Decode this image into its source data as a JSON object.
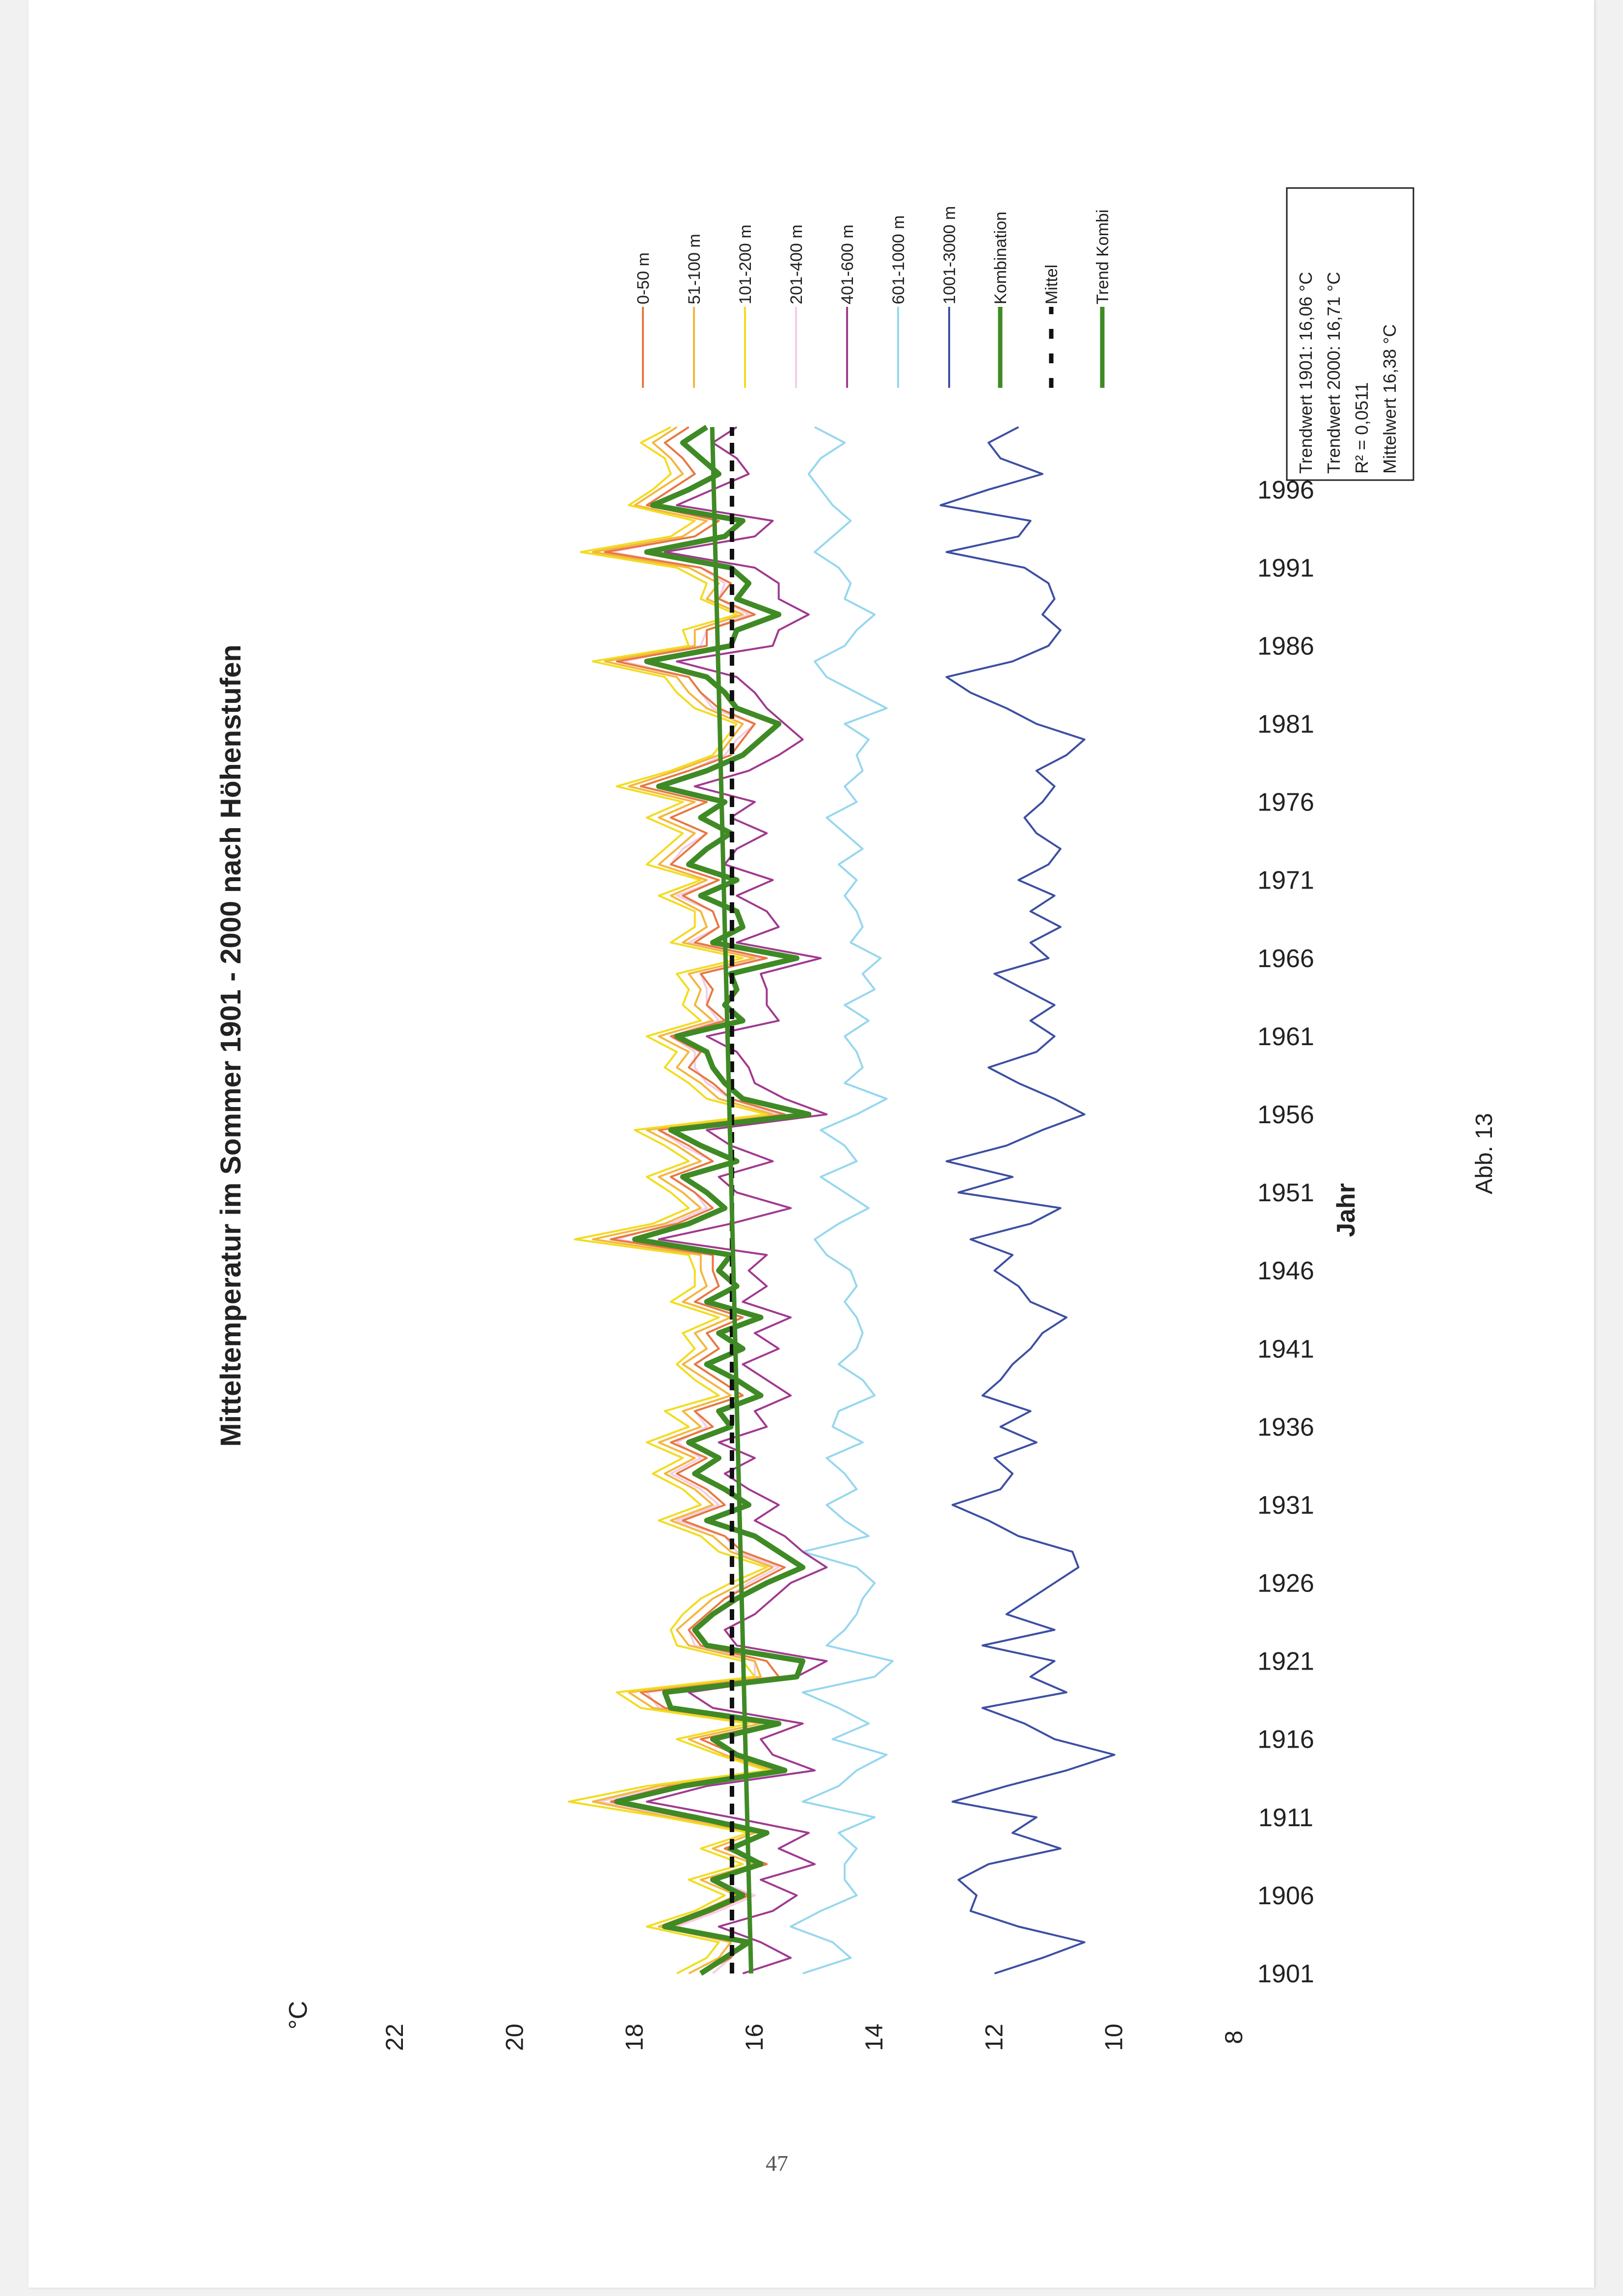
{
  "page": {
    "number": "47",
    "figure_caption": "Abb. 13"
  },
  "legend_labels": {
    "trend_1901": "Trendwert 1901: 16,06 °C",
    "trend_2000": "Trendwert 2000: 16,71 °C",
    "r2": "R² = 0,0511",
    "mean": "Mittelwert 16,38 °C"
  },
  "chart_data": {
    "type": "line",
    "orientation": "rotated-90-ccw",
    "title": "Mitteltemperatur im Sommer 1901 - 2000 nach Höhenstufen",
    "xlabel": "Jahr",
    "ylabel": "°C",
    "ylim": [
      8,
      22
    ],
    "yticks": [
      "8",
      "10",
      "12",
      "14",
      "16",
      "18",
      "20",
      "22"
    ],
    "xlim": [
      1901,
      2000
    ],
    "xticks": [
      "1901",
      "1906",
      "1911",
      "1916",
      "1921",
      "1926",
      "1931",
      "1936",
      "1941",
      "1946",
      "1951",
      "1956",
      "1961",
      "1966",
      "1971",
      "1976",
      "1981",
      "1986",
      "1991",
      "1996"
    ],
    "grid": false,
    "legend_position": "right",
    "colors": {
      "0-50 m": "#e8773f",
      "51-100 m": "#f4b63c",
      "101-200 m": "#f2dc1f",
      "201-400 m": "#f3cde8",
      "401-600 m": "#a0398f",
      "601-1000 m": "#96d7ee",
      "1001-3000 m": "#3c4fa3",
      "Kombination": "#3f8a25",
      "Mittel": "#111111",
      "Trend Kombi": "#3f8a25"
    },
    "series": [
      {
        "name": "Kombination",
        "values": [
          16.9,
          16.5,
          16.1,
          17.5,
          16.8,
          16.2,
          16.7,
          15.9,
          16.4,
          15.8,
          17.0,
          18.3,
          17.2,
          15.5,
          16.3,
          16.7,
          15.6,
          17.4,
          17.5,
          15.3,
          15.2,
          16.8,
          17.0,
          16.7,
          16.3,
          15.8,
          15.2,
          15.6,
          16.0,
          16.8,
          16.1,
          16.5,
          17.0,
          16.6,
          17.1,
          16.4,
          16.6,
          15.9,
          16.3,
          16.8,
          16.2,
          16.6,
          15.9,
          16.8,
          16.3,
          16.6,
          16.4,
          18.0,
          17.1,
          16.5,
          16.8,
          17.2,
          16.3,
          16.9,
          17.4,
          15.1,
          16.2,
          16.5,
          16.7,
          16.8,
          17.3,
          16.2,
          16.5,
          16.3,
          16.4,
          15.3,
          16.7,
          16.2,
          16.3,
          16.9,
          16.3,
          17.1,
          16.8,
          16.4,
          16.9,
          16.5,
          17.6,
          16.8,
          16.2,
          15.9,
          15.6,
          16.3,
          16.5,
          16.8,
          17.8,
          16.4,
          16.3,
          15.6,
          16.3,
          16.1,
          16.4,
          17.8,
          16.5,
          16.2,
          17.7,
          17.1,
          16.6,
          16.9,
          17.2,
          16.8
        ]
      },
      {
        "name": "1001-3000 m",
        "values": [
          12.0,
          11.2,
          10.5,
          11.6,
          12.4,
          12.3,
          12.6,
          12.1,
          10.9,
          11.7,
          11.3,
          12.7,
          11.8,
          10.8,
          10.0,
          11.0,
          11.5,
          12.2,
          10.8,
          11.4,
          11.0,
          12.2,
          11.0,
          11.8,
          11.4,
          11.0,
          10.6,
          10.7,
          11.6,
          12.1,
          12.7,
          11.9,
          11.7,
          12.0,
          11.3,
          11.9,
          11.4,
          12.2,
          11.9,
          11.7,
          11.4,
          11.2,
          10.8,
          11.4,
          11.6,
          12.0,
          11.7,
          12.4,
          11.4,
          10.9,
          12.6,
          11.7,
          12.8,
          11.8,
          11.2,
          10.5,
          11.0,
          11.6,
          12.1,
          11.3,
          11.0,
          11.4,
          11.0,
          11.5,
          12.0,
          11.1,
          11.4,
          10.9,
          11.4,
          11.0,
          11.6,
          11.1,
          10.9,
          11.3,
          11.5,
          11.2,
          11.0,
          11.3,
          10.8,
          10.5,
          11.3,
          11.8,
          12.4,
          12.8,
          11.7,
          11.1,
          10.9,
          11.2,
          11.0,
          11.1,
          11.5,
          12.8,
          11.6,
          11.4,
          12.9,
          12.1,
          11.2,
          11.9,
          12.1,
          11.6
        ]
      },
      {
        "name": "601-1000 m",
        "values": [
          15.2,
          14.4,
          14.7,
          15.4,
          14.9,
          14.3,
          14.5,
          14.5,
          14.3,
          14.6,
          14.0,
          15.2,
          14.6,
          14.3,
          13.8,
          14.7,
          14.1,
          14.6,
          15.2,
          14.0,
          13.7,
          14.8,
          14.5,
          14.3,
          14.2,
          14.0,
          14.3,
          15.2,
          14.1,
          14.5,
          14.8,
          14.3,
          14.5,
          14.8,
          14.2,
          14.7,
          14.6,
          14.0,
          14.2,
          14.6,
          14.3,
          14.2,
          14.3,
          14.5,
          14.3,
          14.4,
          14.8,
          15.0,
          14.6,
          14.1,
          14.5,
          14.9,
          14.3,
          14.5,
          14.9,
          14.3,
          13.8,
          14.5,
          14.2,
          14.3,
          14.5,
          14.1,
          14.5,
          14.0,
          14.2,
          13.9,
          14.4,
          14.2,
          14.3,
          14.5,
          14.3,
          14.6,
          14.2,
          14.5,
          14.8,
          14.3,
          14.5,
          14.2,
          14.3,
          14.1,
          14.5,
          13.8,
          14.3,
          14.8,
          15.0,
          14.5,
          14.3,
          14.0,
          14.5,
          14.4,
          14.6,
          15.0,
          14.7,
          14.4,
          14.7,
          14.9,
          15.1,
          14.9,
          14.5,
          15.0
        ]
      },
      {
        "name": "401-600 m",
        "values": [
          16.2,
          15.4,
          15.9,
          16.6,
          15.7,
          15.3,
          15.9,
          15.0,
          15.6,
          15.1,
          16.4,
          17.8,
          16.8,
          15.0,
          15.7,
          15.9,
          15.2,
          16.7,
          17.1,
          15.3,
          14.8,
          16.3,
          16.5,
          16.0,
          15.7,
          15.4,
          14.8,
          15.2,
          15.5,
          16.0,
          15.6,
          16.1,
          16.5,
          16.0,
          16.6,
          15.8,
          16.0,
          15.4,
          15.8,
          16.2,
          15.6,
          16.0,
          15.4,
          16.2,
          15.8,
          16.1,
          15.8,
          17.6,
          16.4,
          15.4,
          16.3,
          16.6,
          15.7,
          16.4,
          16.8,
          14.8,
          15.5,
          16.0,
          16.1,
          16.3,
          16.8,
          15.6,
          15.8,
          15.8,
          15.9,
          14.9,
          16.3,
          15.6,
          15.8,
          16.3,
          15.7,
          16.5,
          16.3,
          15.8,
          16.4,
          16.0,
          17.0,
          16.1,
          15.6,
          15.2,
          15.5,
          15.8,
          16.0,
          16.3,
          17.3,
          15.7,
          15.6,
          15.1,
          15.6,
          15.6,
          16.0,
          17.5,
          16.0,
          15.7,
          17.3,
          16.7,
          16.1,
          16.3,
          16.7,
          16.3
        ]
      },
      {
        "name": "201-400 m",
        "values": [
          16.7,
          16.4,
          16.4,
          17.3,
          16.6,
          16.0,
          16.7,
          15.9,
          16.5,
          15.8,
          17.2,
          18.6,
          17.4,
          15.6,
          16.3,
          16.9,
          15.7,
          17.6,
          17.8,
          16.0,
          16.0,
          17.0,
          17.1,
          16.8,
          16.5,
          16.1,
          15.6,
          16.3,
          16.5,
          17.3,
          16.6,
          16.9,
          17.4,
          16.9,
          17.3,
          16.8,
          17.0,
          16.2,
          16.6,
          17.0,
          16.6,
          16.8,
          16.2,
          17.0,
          16.6,
          16.7,
          16.7,
          18.3,
          17.4,
          16.8,
          17.0,
          17.4,
          16.7,
          17.2,
          17.6,
          15.6,
          16.4,
          16.8,
          17.0,
          17.0,
          17.4,
          16.6,
          16.8,
          16.8,
          16.9,
          15.9,
          17.1,
          16.6,
          16.7,
          17.3,
          16.6,
          17.4,
          17.2,
          16.8,
          17.4,
          16.8,
          17.9,
          17.1,
          16.5,
          16.3,
          16.0,
          16.7,
          16.9,
          17.1,
          18.2,
          16.9,
          16.8,
          16.1,
          16.6,
          16.5,
          16.9,
          18.4,
          17.0,
          16.6,
          17.8,
          17.4,
          17.0,
          17.2,
          17.5,
          17.1
        ]
      },
      {
        "name": "101-200 m",
        "values": [
          17.3,
          16.8,
          16.6,
          17.8,
          17.0,
          16.5,
          17.1,
          16.2,
          16.9,
          16.1,
          17.5,
          19.1,
          17.8,
          15.8,
          16.6,
          17.3,
          16.1,
          17.9,
          18.3,
          16.0,
          16.2,
          17.3,
          17.4,
          17.2,
          16.9,
          16.4,
          15.8,
          16.6,
          16.9,
          17.6,
          16.9,
          17.2,
          17.7,
          17.2,
          17.8,
          17.1,
          17.5,
          16.6,
          17.0,
          17.3,
          17.0,
          17.2,
          16.6,
          17.4,
          17.0,
          17.0,
          17.1,
          19.0,
          17.7,
          17.1,
          17.4,
          17.8,
          17.1,
          17.5,
          18.0,
          15.8,
          16.8,
          17.1,
          17.5,
          17.3,
          17.8,
          16.9,
          17.2,
          17.1,
          17.3,
          16.2,
          17.4,
          17.0,
          17.0,
          17.6,
          16.9,
          17.8,
          17.5,
          17.2,
          17.8,
          17.2,
          18.3,
          17.4,
          16.7,
          16.5,
          16.3,
          17.0,
          17.3,
          17.5,
          18.7,
          17.1,
          17.2,
          16.3,
          16.9,
          16.8,
          17.3,
          18.9,
          17.4,
          17.0,
          18.1,
          17.7,
          17.4,
          17.5,
          17.9,
          17.4
        ]
      },
      {
        "name": "51-100 m",
        "values": [
          17.1,
          16.6,
          16.4,
          17.6,
          16.9,
          16.3,
          16.9,
          16.0,
          16.7,
          16.0,
          17.4,
          18.7,
          17.6,
          15.7,
          16.5,
          17.1,
          15.9,
          17.7,
          18.1,
          15.9,
          16.0,
          17.1,
          17.3,
          17.0,
          16.7,
          16.2,
          15.7,
          16.4,
          16.7,
          17.4,
          16.7,
          17.0,
          17.5,
          17.0,
          17.6,
          16.9,
          17.2,
          16.4,
          16.8,
          17.2,
          16.8,
          17.0,
          16.4,
          17.2,
          16.8,
          16.9,
          16.9,
          18.7,
          17.5,
          16.9,
          17.2,
          17.6,
          16.9,
          17.3,
          17.8,
          15.7,
          16.6,
          16.9,
          17.3,
          17.1,
          17.6,
          16.7,
          17.0,
          16.9,
          17.1,
          16.0,
          17.2,
          16.8,
          16.9,
          17.4,
          16.8,
          17.6,
          17.3,
          17.0,
          17.6,
          17.0,
          18.1,
          17.3,
          16.6,
          16.4,
          16.2,
          16.8,
          17.1,
          17.3,
          18.5,
          17.0,
          17.0,
          16.2,
          16.8,
          16.6,
          17.1,
          18.7,
          17.2,
          16.8,
          18.0,
          17.6,
          17.2,
          17.4,
          17.7,
          17.3
        ]
      },
      {
        "name": "0-50 m",
        "values": [
          16.9,
          16.4,
          16.2,
          17.4,
          16.7,
          16.1,
          16.7,
          15.8,
          16.5,
          15.8,
          17.2,
          18.4,
          17.4,
          15.5,
          16.3,
          16.9,
          15.7,
          17.5,
          17.9,
          15.6,
          15.8,
          16.9,
          17.1,
          16.8,
          16.5,
          16.0,
          15.5,
          16.2,
          16.5,
          17.2,
          16.5,
          16.8,
          17.3,
          16.8,
          17.4,
          16.7,
          17.0,
          16.2,
          16.6,
          17.0,
          16.6,
          16.8,
          16.2,
          17.0,
          16.6,
          16.7,
          16.7,
          18.4,
          17.3,
          16.7,
          17.0,
          17.4,
          16.7,
          17.1,
          17.6,
          15.5,
          16.4,
          16.7,
          17.1,
          16.9,
          17.4,
          16.5,
          16.8,
          16.7,
          16.9,
          15.8,
          17.0,
          16.6,
          16.7,
          17.2,
          16.6,
          17.4,
          17.1,
          16.8,
          17.4,
          16.8,
          17.9,
          17.1,
          16.4,
          16.2,
          16.0,
          16.6,
          16.9,
          17.1,
          18.3,
          16.8,
          16.8,
          16.0,
          16.6,
          16.4,
          16.9,
          18.5,
          17.0,
          16.6,
          17.8,
          17.4,
          17.0,
          17.2,
          17.5,
          17.1
        ]
      }
    ],
    "mean_line": {
      "name": "Mittel",
      "value": 16.38
    },
    "trend_line": {
      "name": "Trend Kombi",
      "start": 16.06,
      "end": 16.71
    }
  }
}
